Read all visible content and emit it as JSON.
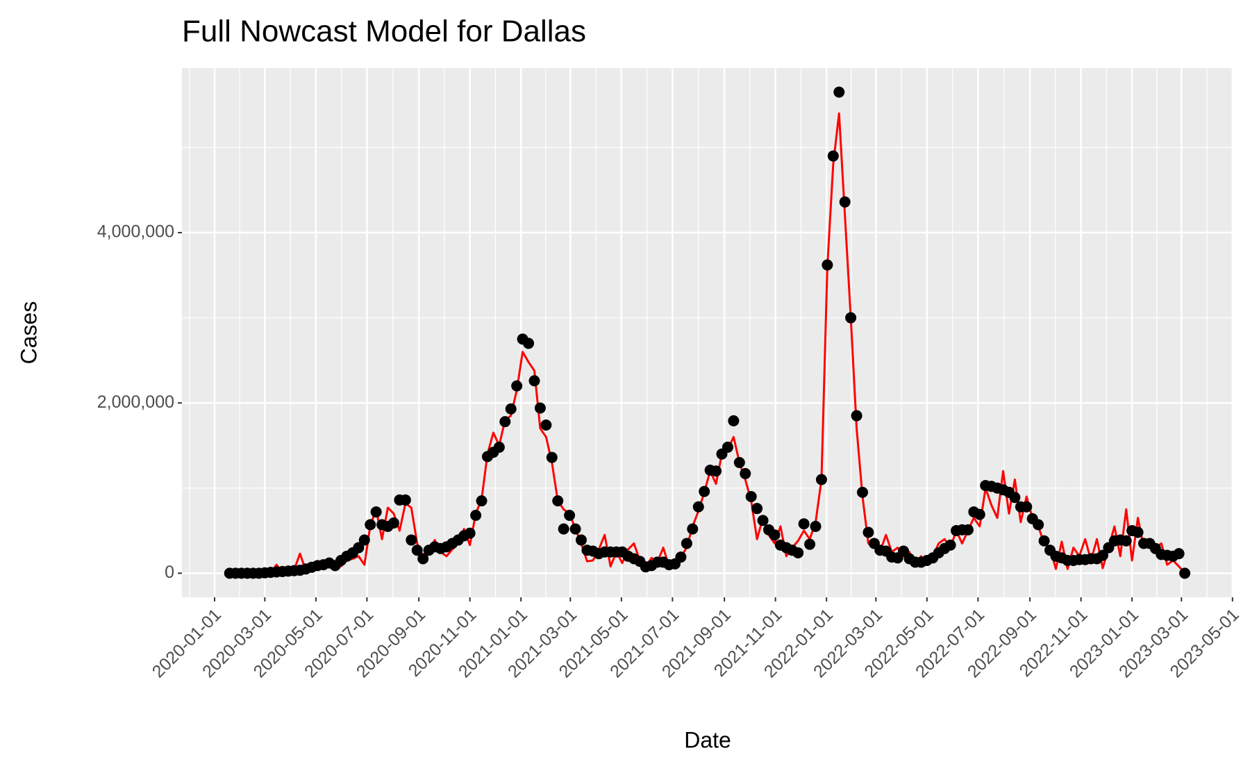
{
  "chart_data": {
    "type": "line",
    "title": "Full Nowcast Model for Dallas",
    "x_label": "Date",
    "y_label": "Cases",
    "x": [
      "2020-01-19",
      "2020-01-26",
      "2020-02-02",
      "2020-02-09",
      "2020-02-16",
      "2020-02-23",
      "2020-03-01",
      "2020-03-08",
      "2020-03-15",
      "2020-03-22",
      "2020-03-29",
      "2020-04-05",
      "2020-04-12",
      "2020-04-19",
      "2020-04-26",
      "2020-05-03",
      "2020-05-10",
      "2020-05-17",
      "2020-05-24",
      "2020-05-31",
      "2020-06-07",
      "2020-06-14",
      "2020-06-21",
      "2020-06-28",
      "2020-07-05",
      "2020-07-12",
      "2020-07-19",
      "2020-07-26",
      "2020-08-02",
      "2020-08-09",
      "2020-08-16",
      "2020-08-23",
      "2020-08-30",
      "2020-09-06",
      "2020-09-13",
      "2020-09-20",
      "2020-09-27",
      "2020-10-04",
      "2020-10-11",
      "2020-10-18",
      "2020-10-25",
      "2020-11-01",
      "2020-11-08",
      "2020-11-15",
      "2020-11-22",
      "2020-11-29",
      "2020-12-06",
      "2020-12-13",
      "2020-12-20",
      "2020-12-27",
      "2021-01-03",
      "2021-01-10",
      "2021-01-17",
      "2021-01-24",
      "2021-01-31",
      "2021-02-07",
      "2021-02-14",
      "2021-02-21",
      "2021-02-28",
      "2021-03-07",
      "2021-03-14",
      "2021-03-21",
      "2021-03-28",
      "2021-04-04",
      "2021-04-11",
      "2021-04-18",
      "2021-04-25",
      "2021-05-02",
      "2021-05-09",
      "2021-05-16",
      "2021-05-23",
      "2021-05-30",
      "2021-06-06",
      "2021-06-13",
      "2021-06-20",
      "2021-06-27",
      "2021-07-04",
      "2021-07-11",
      "2021-07-18",
      "2021-07-25",
      "2021-08-01",
      "2021-08-08",
      "2021-08-15",
      "2021-08-22",
      "2021-08-29",
      "2021-09-05",
      "2021-09-12",
      "2021-09-19",
      "2021-09-26",
      "2021-10-03",
      "2021-10-10",
      "2021-10-17",
      "2021-10-24",
      "2021-10-31",
      "2021-11-07",
      "2021-11-14",
      "2021-11-21",
      "2021-11-28",
      "2021-12-05",
      "2021-12-12",
      "2021-12-19",
      "2021-12-26",
      "2022-01-02",
      "2022-01-09",
      "2022-01-16",
      "2022-01-23",
      "2022-01-30",
      "2022-02-06",
      "2022-02-13",
      "2022-02-20",
      "2022-02-27",
      "2022-03-06",
      "2022-03-13",
      "2022-03-20",
      "2022-03-27",
      "2022-04-03",
      "2022-04-10",
      "2022-04-17",
      "2022-04-24",
      "2022-05-01",
      "2022-05-08",
      "2022-05-15",
      "2022-05-22",
      "2022-05-29",
      "2022-06-05",
      "2022-06-12",
      "2022-06-19",
      "2022-06-26",
      "2022-07-03",
      "2022-07-10",
      "2022-07-17",
      "2022-07-24",
      "2022-07-31",
      "2022-08-07",
      "2022-08-14",
      "2022-08-21",
      "2022-08-28",
      "2022-09-04",
      "2022-09-11",
      "2022-09-18",
      "2022-09-25",
      "2022-10-02",
      "2022-10-09",
      "2022-10-16",
      "2022-10-23",
      "2022-10-30",
      "2022-11-06",
      "2022-11-13",
      "2022-11-20",
      "2022-11-27",
      "2022-12-04",
      "2022-12-11",
      "2022-12-18",
      "2022-12-25",
      "2023-01-01",
      "2023-01-08",
      "2023-01-15",
      "2023-01-22",
      "2023-01-29",
      "2023-02-05",
      "2023-02-12",
      "2023-02-19",
      "2023-02-26",
      "2023-03-05"
    ],
    "series": [
      {
        "color": "#ff0000",
        "marker": "line",
        "values": [
          0,
          0,
          0,
          0,
          0,
          0,
          10000,
          5000,
          100000,
          10000,
          20000,
          40000,
          230000,
          30000,
          50000,
          80000,
          110000,
          140000,
          100000,
          80000,
          150000,
          170000,
          200000,
          100000,
          560000,
          750000,
          400000,
          770000,
          700000,
          500000,
          820000,
          770000,
          350000,
          200000,
          250000,
          390000,
          250000,
          200000,
          280000,
          350000,
          520000,
          330000,
          700000,
          870000,
          1400000,
          1650000,
          1500000,
          1800000,
          1850000,
          2150000,
          2600000,
          2480000,
          2380000,
          1700000,
          1600000,
          1300000,
          850000,
          750000,
          700000,
          520000,
          350000,
          140000,
          150000,
          280000,
          450000,
          80000,
          250000,
          120000,
          280000,
          350000,
          150000,
          80000,
          180000,
          130000,
          300000,
          80000,
          120000,
          190000,
          300000,
          550000,
          730000,
          950000,
          1200000,
          1050000,
          1400000,
          1450000,
          1600000,
          1300000,
          1100000,
          850000,
          400000,
          650000,
          450000,
          350000,
          550000,
          200000,
          300000,
          380000,
          500000,
          400000,
          600000,
          1100000,
          3600000,
          4800000,
          5400000,
          4200000,
          3000000,
          1700000,
          900000,
          350000,
          300000,
          250000,
          450000,
          250000,
          300000,
          200000,
          250000,
          80000,
          200000,
          100000,
          200000,
          350000,
          400000,
          300000,
          500000,
          350000,
          500000,
          650000,
          550000,
          1000000,
          800000,
          650000,
          1200000,
          700000,
          1100000,
          600000,
          900000,
          650000,
          550000,
          350000,
          300000,
          50000,
          370000,
          50000,
          300000,
          200000,
          400000,
          150000,
          400000,
          60000,
          300000,
          550000,
          200000,
          750000,
          150000,
          650000,
          300000,
          350000,
          300000,
          350000,
          100000,
          150000,
          80000,
          0
        ]
      },
      {
        "color": "#000000",
        "marker": "point",
        "values": [
          0,
          0,
          0,
          0,
          0,
          0,
          5000,
          10000,
          15000,
          20000,
          25000,
          30000,
          35000,
          50000,
          70000,
          90000,
          100000,
          120000,
          90000,
          150000,
          200000,
          240000,
          300000,
          390000,
          570000,
          720000,
          570000,
          550000,
          590000,
          860000,
          860000,
          390000,
          270000,
          170000,
          270000,
          310000,
          290000,
          310000,
          350000,
          390000,
          440000,
          470000,
          680000,
          850000,
          1370000,
          1420000,
          1480000,
          1780000,
          1930000,
          2200000,
          2750000,
          2700000,
          2260000,
          1940000,
          1740000,
          1360000,
          850000,
          520000,
          680000,
          520000,
          390000,
          270000,
          260000,
          230000,
          250000,
          250000,
          250000,
          250000,
          200000,
          170000,
          140000,
          75000,
          90000,
          130000,
          130000,
          100000,
          110000,
          190000,
          350000,
          520000,
          780000,
          960000,
          1210000,
          1200000,
          1400000,
          1480000,
          1790000,
          1300000,
          1170000,
          900000,
          760000,
          620000,
          510000,
          450000,
          330000,
          300000,
          270000,
          240000,
          580000,
          340000,
          550000,
          1100000,
          3620000,
          4900000,
          5650000,
          4360000,
          3000000,
          1850000,
          950000,
          480000,
          350000,
          270000,
          260000,
          190000,
          180000,
          260000,
          170000,
          130000,
          130000,
          150000,
          180000,
          240000,
          290000,
          330000,
          500000,
          510000,
          510000,
          720000,
          690000,
          1030000,
          1020000,
          1000000,
          980000,
          950000,
          890000,
          780000,
          780000,
          640000,
          570000,
          380000,
          270000,
          200000,
          180000,
          150000,
          150000,
          160000,
          160000,
          170000,
          170000,
          210000,
          300000,
          380000,
          390000,
          380000,
          500000,
          480000,
          350000,
          350000,
          290000,
          220000,
          210000,
          200000,
          230000,
          0
        ]
      }
    ],
    "xlim": [
      "2019-11-23",
      "2023-05-02"
    ],
    "xticks": [
      "2020-01-01",
      "2020-03-01",
      "2020-05-01",
      "2020-07-01",
      "2020-09-01",
      "2020-11-01",
      "2021-01-01",
      "2021-03-01",
      "2021-05-01",
      "2021-07-01",
      "2021-09-01",
      "2021-11-01",
      "2022-01-01",
      "2022-03-01",
      "2022-05-01",
      "2022-07-01",
      "2022-09-01",
      "2022-11-01",
      "2023-01-01",
      "2023-03-01",
      "2023-05-01"
    ],
    "ylim": [
      -282500,
      5932500
    ],
    "yticks": [
      0,
      {
        "value": 2000000,
        "label": "2,000,000"
      },
      {
        "value": 4000000,
        "label": "4,000,000"
      }
    ],
    "grid": true,
    "background": "#ebebeb"
  }
}
